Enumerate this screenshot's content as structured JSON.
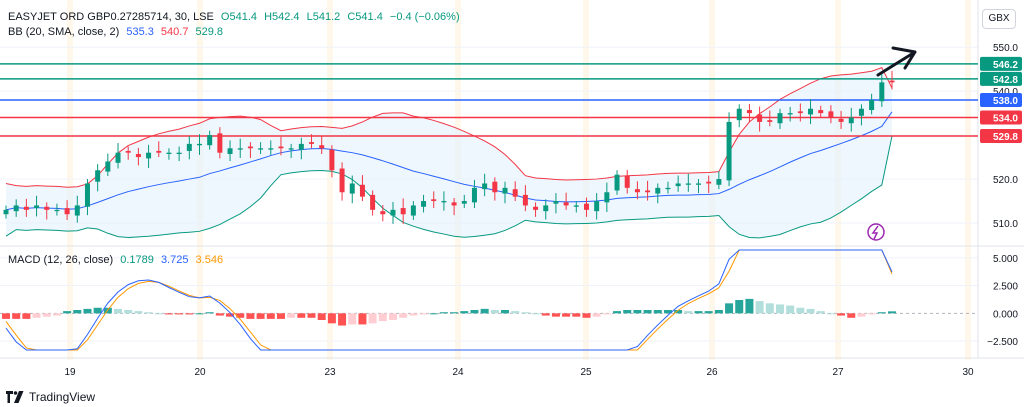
{
  "header": {
    "symbol": "EASYJET ORD GBP0.27285714, 30, LSE",
    "open": "O541.4",
    "high": "H542.4",
    "low": "L541.2",
    "close": "C541.4",
    "change": "−0.4 (−0.06%)",
    "bb_label": "BB (20, SMA, close, 2)",
    "bb_basis": "535.3",
    "bb_upper": "540.7",
    "bb_lower": "529.8",
    "macd_label": "MACD (12, 26, close)",
    "macd_hist": "0.1789",
    "macd_line": "3.725",
    "macd_signal": "3.546"
  },
  "currency_button": "GBX",
  "brand": "TradingView",
  "colors": {
    "up": "#089981",
    "down": "#f23645",
    "bb_basis": "#2962ff",
    "bb_upper": "#f23645",
    "bb_lower": "#089981",
    "bb_fill": "#e3f2fd",
    "macd": "#2962ff",
    "signal": "#ff9800",
    "level_green": "#089981",
    "level_blue": "#2962ff",
    "level_red": "#f23645"
  },
  "chart_data": [
    {
      "type": "candlestick",
      "title": "EASYJET ORD GBP0.27285714, 30, LSE",
      "x_ticks": [
        "19",
        "20",
        "23",
        "24",
        "25",
        "26",
        "27",
        "30"
      ],
      "ylim": [
        505,
        553
      ],
      "y_ticks": [
        510.0,
        520.0,
        530.0,
        540.0,
        550.0
      ],
      "horizontal_levels": [
        {
          "value": 546.2,
          "label": "546.2",
          "color": "green"
        },
        {
          "value": 542.8,
          "label": "542.8",
          "color": "green"
        },
        {
          "value": 538.0,
          "label": "538.0",
          "color": "blue"
        },
        {
          "value": 534.0,
          "label": "534.0",
          "color": "red"
        },
        {
          "value": 529.8,
          "label": "529.8",
          "color": "red"
        }
      ],
      "close_approx": [
        513,
        514,
        513,
        514,
        513,
        513,
        512,
        514,
        519,
        522,
        524,
        526,
        526,
        525,
        526,
        526,
        526,
        526,
        528,
        528,
        530,
        526,
        527,
        527,
        527,
        527,
        527,
        527,
        527,
        528,
        528,
        527,
        522,
        517,
        519,
        516,
        513,
        512,
        513,
        512,
        514,
        515,
        515,
        515,
        514,
        515,
        518,
        519,
        517,
        518,
        516,
        514,
        513,
        514,
        515,
        514,
        514,
        513,
        515,
        517,
        521,
        518,
        517,
        517,
        518,
        518,
        519,
        519,
        519,
        519,
        520,
        533,
        536,
        535,
        533,
        533,
        535,
        535,
        535,
        536,
        535,
        534,
        533,
        534,
        536,
        538,
        542,
        542
      ],
      "bollinger": {
        "basis_end": 535.3,
        "upper_end": 540.7,
        "lower_end": 529.8
      }
    },
    {
      "type": "macd",
      "title": "MACD (12, 26, close)",
      "ylim": [
        -3.3,
        5.7
      ],
      "y_ticks": [
        -2.5,
        0.0,
        2.5,
        5.0
      ],
      "y_tick_labels": [
        "−2.500",
        "0.000",
        "2.500",
        "5.000"
      ],
      "histogram_approx": [
        -0.5,
        -0.5,
        -0.5,
        -0.4,
        -0.3,
        -0.2,
        0.2,
        0.3,
        0.4,
        0.5,
        0.5,
        0.4,
        0.3,
        0.2,
        0.1,
        0.0,
        -0.1,
        -0.1,
        -0.1,
        0.0,
        0.1,
        -0.2,
        -0.3,
        -0.4,
        -0.5,
        -0.5,
        -0.5,
        -0.5,
        -0.4,
        -0.4,
        -0.4,
        -0.6,
        -0.9,
        -1.1,
        -1.0,
        -1.0,
        -0.9,
        -0.7,
        -0.6,
        -0.4,
        -0.2,
        -0.1,
        0.0,
        0.1,
        0.1,
        0.2,
        0.3,
        0.4,
        0.3,
        0.3,
        0.2,
        0.1,
        0.0,
        -0.2,
        -0.3,
        -0.3,
        -0.3,
        -0.4,
        -0.3,
        -0.1,
        0.2,
        0.3,
        0.3,
        0.3,
        0.3,
        0.3,
        0.3,
        0.2,
        0.2,
        0.2,
        0.3,
        0.9,
        1.2,
        1.3,
        1.1,
        0.9,
        0.8,
        0.7,
        0.5,
        0.4,
        0.2,
        0.0,
        -0.2,
        -0.4,
        -0.3,
        -0.1,
        0.1,
        0.18
      ],
      "macd_end": 3.725,
      "signal_end": 3.546
    }
  ]
}
